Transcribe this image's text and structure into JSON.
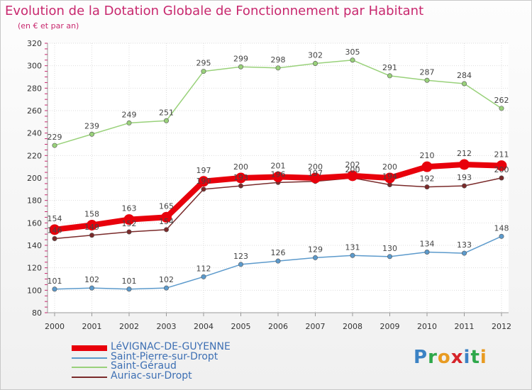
{
  "header": {
    "title": "Evolution de la Dotation Globale de Fonctionnement par Habitant",
    "subtitle": "(en € et par an)"
  },
  "brand": {
    "text": "Proxiti",
    "colors": [
      "#3b82c4",
      "#2ea84a",
      "#e89b22",
      "#d6242a",
      "#3b82c4",
      "#2ea84a",
      "#e89b22"
    ]
  },
  "chart_data": {
    "type": "line",
    "title": "Evolution de la Dotation Globale de Fonctionnement par Habitant",
    "subtitle": "(en € et par an)",
    "xlabel": "",
    "ylabel": "",
    "x": [
      "2000",
      "2001",
      "2002",
      "2003",
      "2004",
      "2005",
      "2006",
      "2007",
      "2008",
      "2009",
      "2010",
      "2011",
      "2012"
    ],
    "ylim": [
      80,
      320
    ],
    "yticks": [
      80,
      100,
      120,
      140,
      160,
      180,
      200,
      220,
      240,
      260,
      280,
      300,
      320
    ],
    "grid": true,
    "legend_position": "bottom-left",
    "series": [
      {
        "name": "LéVIGNAC-DE-GUYENNE",
        "color": "#e8000b",
        "emphasis": true,
        "values": [
          154,
          158,
          163,
          165,
          197,
          200,
          201,
          200,
          202,
          200,
          210,
          212,
          211
        ]
      },
      {
        "name": "Saint-Pierre-sur-Dropt",
        "color": "#5c9acc",
        "emphasis": false,
        "values": [
          101,
          102,
          101,
          102,
          112,
          123,
          126,
          129,
          131,
          130,
          134,
          133,
          148
        ]
      },
      {
        "name": "Saint-Géraud",
        "color": "#99d17a",
        "emphasis": false,
        "values": [
          229,
          239,
          249,
          251,
          295,
          299,
          298,
          302,
          305,
          291,
          287,
          284,
          262
        ]
      },
      {
        "name": "Auriac-sur-Dropt",
        "color": "#7a2a2a",
        "emphasis": false,
        "values": [
          146,
          149,
          152,
          154,
          190,
          193,
          196,
          197,
          200,
          194,
          192,
          193,
          200
        ]
      }
    ]
  }
}
